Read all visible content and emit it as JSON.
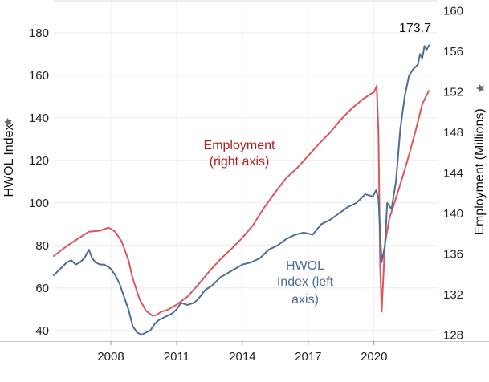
{
  "chart_data": {
    "type": "line",
    "left_axis": {
      "label": "HWOL Index",
      "ticks": [
        40,
        60,
        80,
        100,
        120,
        140,
        160,
        180
      ],
      "range": [
        35,
        195
      ]
    },
    "right_axis": {
      "label": "Employment (Millions)",
      "ticks": [
        128,
        132,
        136,
        140,
        144,
        148,
        152,
        156,
        160
      ],
      "range": [
        127.4,
        161.0
      ]
    },
    "x_axis": {
      "ticks": [
        "2008",
        "2011",
        "2014",
        "2017",
        "2020"
      ],
      "tick_values": [
        2008,
        2011,
        2014,
        2017,
        2020
      ],
      "range": [
        2005.4,
        2022.9
      ]
    },
    "grid": true,
    "colors": {
      "hwol": "#4e6e96",
      "employment": "#d9575d",
      "employment_label": "#b02020",
      "hwol_label": "#4e6e96"
    },
    "annotations": {
      "peak_value": "173.7",
      "employment_line1": "Employment",
      "employment_line2": "(right axis)",
      "hwol_line1": "HWOL",
      "hwol_line2": "Index (left",
      "hwol_line3": "axis)"
    },
    "series": [
      {
        "key": "hwol",
        "axis": "left",
        "x": [
          2005.4,
          2005.7,
          2006.0,
          2006.2,
          2006.4,
          2006.6,
          2006.8,
          2007.0,
          2007.15,
          2007.3,
          2007.5,
          2007.7,
          2008.0,
          2008.2,
          2008.4,
          2008.6,
          2008.8,
          2009.0,
          2009.2,
          2009.4,
          2009.6,
          2009.8,
          2010.0,
          2010.2,
          2010.4,
          2010.6,
          2010.8,
          2011.0,
          2011.2,
          2011.5,
          2011.8,
          2012.0,
          2012.3,
          2012.6,
          2013.0,
          2013.5,
          2014.0,
          2014.4,
          2014.8,
          2015.2,
          2015.6,
          2016.0,
          2016.4,
          2016.8,
          2017.2,
          2017.6,
          2018.0,
          2018.4,
          2018.8,
          2019.2,
          2019.6,
          2019.95,
          2020.1,
          2020.2,
          2020.35,
          2020.5,
          2020.6,
          2020.8,
          2021.0,
          2021.2,
          2021.4,
          2021.6,
          2021.8,
          2022.0,
          2022.1,
          2022.2,
          2022.3,
          2022.4,
          2022.5
        ],
        "values": [
          66,
          69,
          72,
          73,
          71,
          72,
          74,
          78,
          74,
          72,
          71,
          71,
          69,
          66,
          62,
          56,
          50,
          42,
          39,
          38,
          39,
          40,
          43,
          45,
          46,
          47,
          48,
          50,
          53,
          52,
          53,
          55,
          59,
          61,
          65,
          68,
          71,
          72,
          74,
          78,
          80,
          83,
          85,
          86,
          85,
          90,
          92,
          95,
          98,
          100,
          104,
          103,
          106,
          102,
          72,
          80,
          100,
          97,
          110,
          135,
          150,
          160,
          163,
          165,
          170,
          168,
          173.7,
          172,
          174
        ]
      },
      {
        "key": "employment",
        "axis": "right",
        "x": [
          2005.4,
          2006.0,
          2006.5,
          2007.0,
          2007.5,
          2007.9,
          2008.2,
          2008.5,
          2008.8,
          2009.0,
          2009.3,
          2009.6,
          2009.9,
          2010.1,
          2010.3,
          2010.6,
          2011.0,
          2011.5,
          2012.0,
          2012.5,
          2013.0,
          2013.5,
          2014.0,
          2014.5,
          2015.0,
          2015.5,
          2016.0,
          2016.5,
          2017.0,
          2017.5,
          2018.0,
          2018.5,
          2019.0,
          2019.5,
          2020.0,
          2020.12,
          2020.2,
          2020.28,
          2020.35,
          2020.5,
          2020.7,
          2021.0,
          2021.3,
          2021.6,
          2021.9,
          2022.2,
          2022.5
        ],
        "values": [
          135.8,
          136.8,
          137.5,
          138.2,
          138.3,
          138.6,
          138.2,
          137.2,
          135.4,
          133.6,
          131.6,
          130.4,
          129.9,
          130.0,
          130.3,
          130.5,
          131.0,
          131.8,
          133.0,
          134.3,
          135.5,
          136.5,
          137.6,
          138.9,
          140.6,
          142.1,
          143.5,
          144.5,
          145.7,
          146.9,
          148.0,
          149.3,
          150.4,
          151.3,
          152.0,
          152.6,
          148.0,
          135.0,
          130.3,
          137.0,
          139.5,
          141.5,
          143.6,
          145.8,
          148.2,
          150.8,
          152.1
        ]
      }
    ]
  }
}
